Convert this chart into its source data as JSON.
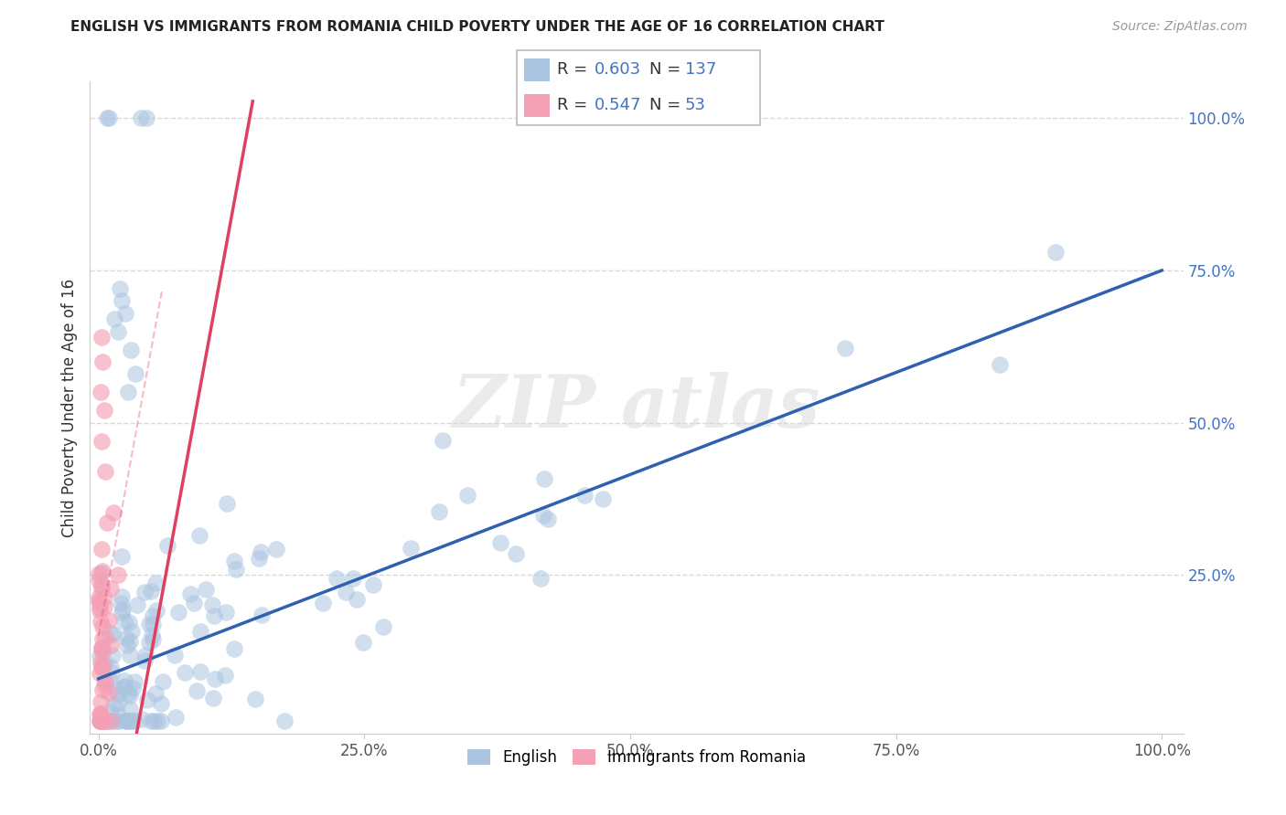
{
  "title": "ENGLISH VS IMMIGRANTS FROM ROMANIA CHILD POVERTY UNDER THE AGE OF 16 CORRELATION CHART",
  "source": "Source: ZipAtlas.com",
  "ylabel": "Child Poverty Under the Age of 16",
  "english_R": 0.603,
  "english_N": 137,
  "romania_R": 0.547,
  "romania_N": 53,
  "english_color": "#aac4e0",
  "romania_color": "#f4a0b5",
  "english_line_color": "#3060b0",
  "romania_line_color": "#e04060",
  "ytick_color": "#4472C4",
  "grid_color": "#d0d0d0"
}
